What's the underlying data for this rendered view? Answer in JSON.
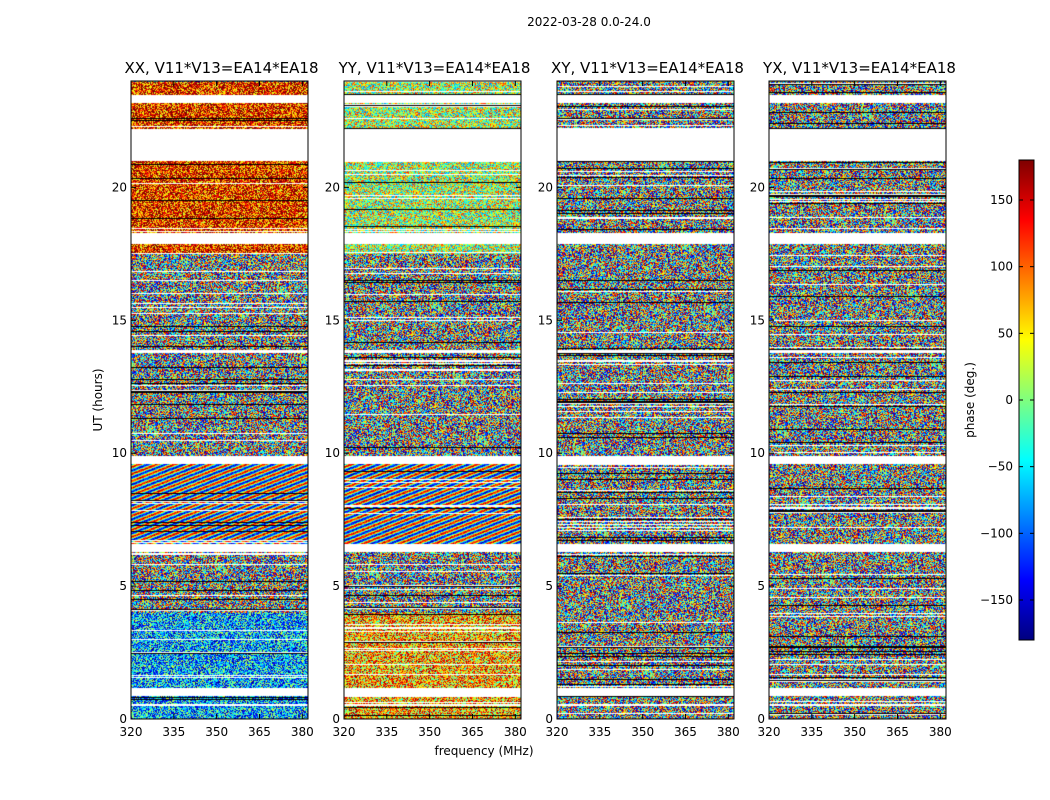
{
  "chart_data": {
    "type": "heatmap",
    "suptitle": "2022-03-28 0.0-24.0",
    "xlabel": "frequency (MHz)",
    "ylabel": "UT (hours)",
    "xlim": [
      320,
      382
    ],
    "ylim": [
      0,
      24
    ],
    "xticks": [
      320,
      335,
      350,
      365,
      380
    ],
    "yticks": [
      0,
      5,
      10,
      15,
      20
    ],
    "colorbar": {
      "label": "phase (deg.)",
      "range": [
        -180,
        180
      ],
      "ticks": [
        150,
        100,
        50,
        0,
        -50,
        -100,
        -150
      ],
      "tick_labels": [
        "150",
        "100",
        "50",
        "0",
        "−50",
        "−100",
        "−150"
      ],
      "colormap": [
        "#00007f",
        "#0000ff",
        "#007fff",
        "#00ffff",
        "#7fff7f",
        "#ffff00",
        "#ff7f00",
        "#ff0000",
        "#7f0000"
      ]
    },
    "panels": [
      {
        "title": "XX, V11*V13=EA14*EA18",
        "polarization": "XX"
      },
      {
        "title": "YY, V11*V13=EA14*EA18",
        "polarization": "YY"
      },
      {
        "title": "XY, V11*V13=EA14*EA18",
        "polarization": "XY"
      },
      {
        "title": "YX, V11*V13=EA14*EA18",
        "polarization": "YX"
      }
    ],
    "flagged_ut_hours": [
      [
        23.2,
        23.5
      ],
      [
        21.0,
        22.2
      ],
      [
        17.9,
        18.3
      ],
      [
        13.8,
        13.9
      ],
      [
        9.6,
        9.9
      ],
      [
        6.3,
        6.6
      ],
      [
        0.9,
        1.2
      ],
      [
        0.5,
        0.6
      ]
    ]
  }
}
